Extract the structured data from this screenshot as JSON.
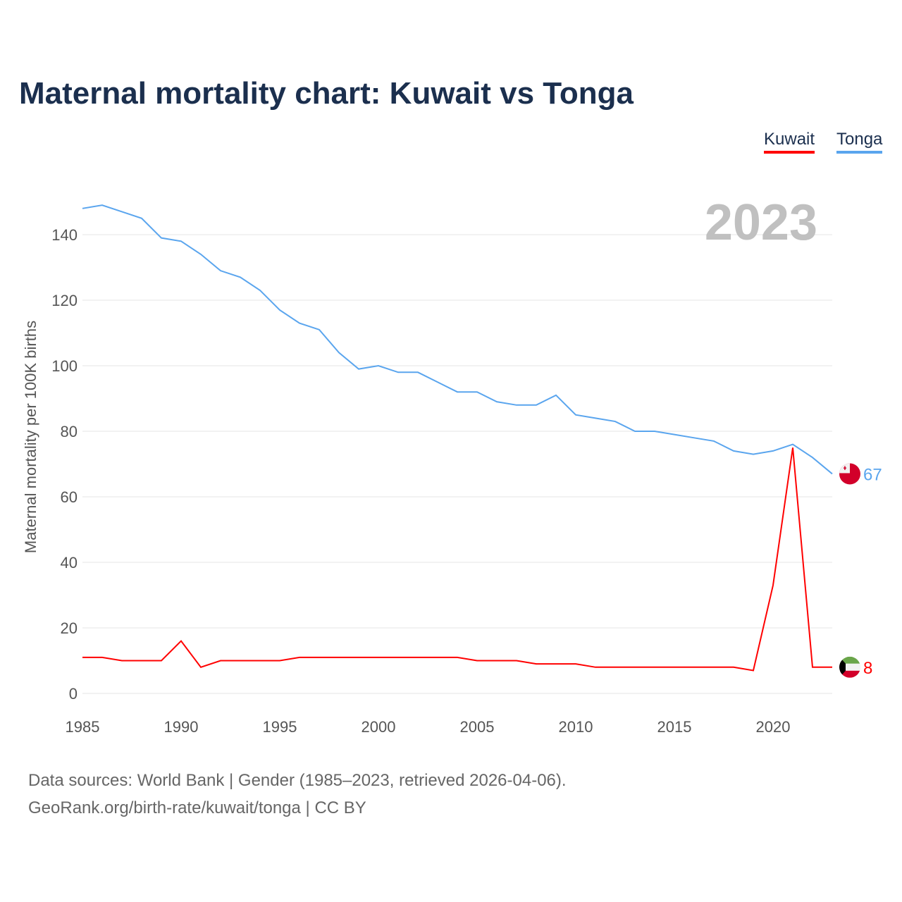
{
  "title": "Maternal mortality chart: Kuwait vs Tonga",
  "footer": {
    "line1": "Data sources: World Bank | Gender (1985–2023, retrieved 2026-04-06).",
    "line2": "GeoRank.org/birth-rate/kuwait/tonga | CC BY"
  },
  "chart_data": {
    "type": "line",
    "title": "Maternal mortality chart: Kuwait vs Tonga",
    "ylabel": "Maternal mortality per 100K births",
    "xlabel": "",
    "year_label": "2023",
    "xlim": [
      1985,
      2023
    ],
    "ylim": [
      0,
      150
    ],
    "x_ticks": [
      1985,
      1990,
      1995,
      2000,
      2005,
      2010,
      2015,
      2020
    ],
    "y_ticks": [
      0,
      20,
      40,
      60,
      80,
      100,
      120,
      140
    ],
    "legend": "top-right",
    "x": [
      1985,
      1986,
      1987,
      1988,
      1989,
      1990,
      1991,
      1992,
      1993,
      1994,
      1995,
      1996,
      1997,
      1998,
      1999,
      2000,
      2001,
      2002,
      2003,
      2004,
      2005,
      2006,
      2007,
      2008,
      2009,
      2010,
      2011,
      2012,
      2013,
      2014,
      2015,
      2016,
      2017,
      2018,
      2019,
      2020,
      2021,
      2022,
      2023
    ],
    "series": [
      {
        "name": "Kuwait",
        "color": "#ff0000",
        "end_label": "8",
        "values": [
          11,
          11,
          10,
          10,
          10,
          16,
          8,
          10,
          10,
          10,
          10,
          11,
          11,
          11,
          11,
          11,
          11,
          11,
          11,
          11,
          10,
          10,
          10,
          9,
          9,
          9,
          8,
          8,
          8,
          8,
          8,
          8,
          8,
          8,
          7,
          33,
          75,
          8,
          8
        ]
      },
      {
        "name": "Tonga",
        "color": "#5aa5ee",
        "end_label": "67",
        "values": [
          148,
          149,
          147,
          145,
          139,
          138,
          134,
          129,
          127,
          123,
          117,
          113,
          111,
          104,
          99,
          100,
          98,
          98,
          95,
          92,
          92,
          89,
          88,
          88,
          91,
          85,
          84,
          83,
          80,
          80,
          79,
          78,
          77,
          74,
          73,
          74,
          76,
          72,
          67
        ]
      }
    ]
  }
}
